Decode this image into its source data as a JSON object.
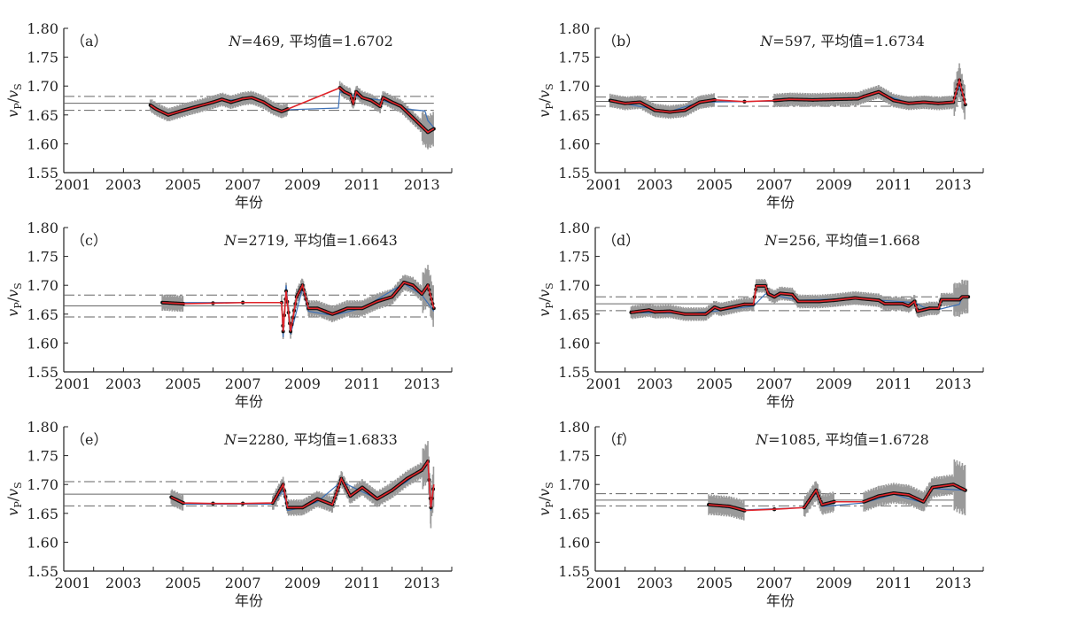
{
  "chart_data": [
    {
      "type": "line",
      "panel": "（a）",
      "n_label": "N",
      "title_rest": "=469, 平均值=1.6702",
      "mean": 1.6702,
      "band": [
        1.658,
        1.682
      ],
      "err": 0.01,
      "red": [
        [
          2003.9,
          1.667
        ],
        [
          2004.1,
          1.66
        ],
        [
          2004.5,
          1.65
        ],
        [
          2005,
          1.658
        ],
        [
          2005.5,
          1.665
        ],
        [
          2006,
          1.672
        ],
        [
          2006.3,
          1.677
        ],
        [
          2006.6,
          1.672
        ],
        [
          2007,
          1.678
        ],
        [
          2007.3,
          1.68
        ],
        [
          2007.7,
          1.672
        ],
        [
          2008,
          1.662
        ],
        [
          2008.3,
          1.656
        ],
        [
          2008.5,
          1.66
        ],
        [
          2010.25,
          1.697
        ],
        [
          2010.4,
          1.69
        ],
        [
          2010.6,
          1.685
        ],
        [
          2010.7,
          1.67
        ],
        [
          2010.8,
          1.69
        ],
        [
          2011,
          1.68
        ],
        [
          2011.3,
          1.675
        ],
        [
          2011.6,
          1.665
        ],
        [
          2011.7,
          1.68
        ],
        [
          2012,
          1.672
        ],
        [
          2012.3,
          1.665
        ],
        [
          2012.5,
          1.655
        ],
        [
          2013.2,
          1.62
        ],
        [
          2013.4,
          1.626
        ]
      ],
      "blue": [
        [
          2003.9,
          1.667
        ],
        [
          2004.5,
          1.652
        ],
        [
          2005.5,
          1.664
        ],
        [
          2006.3,
          1.675
        ],
        [
          2007.3,
          1.678
        ],
        [
          2008.3,
          1.658
        ],
        [
          2008.5,
          1.659
        ],
        [
          2010.2,
          1.662
        ],
        [
          2010.25,
          1.69
        ],
        [
          2011,
          1.68
        ],
        [
          2011.7,
          1.675
        ],
        [
          2012.5,
          1.66
        ],
        [
          2013.1,
          1.657
        ],
        [
          2013.2,
          1.64
        ],
        [
          2013.4,
          1.628
        ]
      ]
    },
    {
      "type": "line",
      "panel": "（b）",
      "n_label": "N",
      "title_rest": "=597, 平均值=1.6734",
      "mean": 1.6734,
      "band": [
        1.665,
        1.681
      ],
      "err": 0.01,
      "red": [
        [
          2001.5,
          1.675
        ],
        [
          2002,
          1.67
        ],
        [
          2002.5,
          1.672
        ],
        [
          2003,
          1.658
        ],
        [
          2003.5,
          1.655
        ],
        [
          2004,
          1.658
        ],
        [
          2004.5,
          1.672
        ],
        [
          2005,
          1.676
        ],
        [
          2006,
          1.673
        ],
        [
          2007,
          1.675
        ],
        [
          2007.5,
          1.677
        ],
        [
          2008.3,
          1.676
        ],
        [
          2009,
          1.677
        ],
        [
          2009.8,
          1.678
        ],
        [
          2010,
          1.682
        ],
        [
          2010.5,
          1.69
        ],
        [
          2011,
          1.675
        ],
        [
          2011.5,
          1.67
        ],
        [
          2012,
          1.672
        ],
        [
          2012.5,
          1.67
        ],
        [
          2013,
          1.672
        ],
        [
          2013.2,
          1.71
        ],
        [
          2013.4,
          1.668
        ]
      ],
      "blue": [
        [
          2001.5,
          1.674
        ],
        [
          2003,
          1.66
        ],
        [
          2003.5,
          1.656
        ],
        [
          2004.5,
          1.672
        ],
        [
          2006,
          1.673
        ],
        [
          2008.3,
          1.676
        ],
        [
          2009.8,
          1.678
        ],
        [
          2010.5,
          1.688
        ],
        [
          2011.5,
          1.671
        ],
        [
          2013,
          1.672
        ],
        [
          2013.2,
          1.7
        ],
        [
          2013.4,
          1.67
        ]
      ]
    },
    {
      "type": "line",
      "panel": "（c）",
      "n_label": "N",
      "title_rest": "=2719, 平均值=1.6643",
      "mean": 1.6643,
      "band": [
        1.645,
        1.683
      ],
      "err": 0.012,
      "red": [
        [
          2004.3,
          1.67
        ],
        [
          2005,
          1.668
        ],
        [
          2006,
          1.669
        ],
        [
          2007,
          1.67
        ],
        [
          2008.3,
          1.67
        ],
        [
          2008.35,
          1.62
        ],
        [
          2008.45,
          1.69
        ],
        [
          2008.6,
          1.62
        ],
        [
          2008.8,
          1.68
        ],
        [
          2009,
          1.7
        ],
        [
          2009.2,
          1.66
        ],
        [
          2009.5,
          1.66
        ],
        [
          2010,
          1.65
        ],
        [
          2010.5,
          1.66
        ],
        [
          2011,
          1.66
        ],
        [
          2011.5,
          1.672
        ],
        [
          2012,
          1.68
        ],
        [
          2012.4,
          1.705
        ],
        [
          2012.7,
          1.7
        ],
        [
          2013,
          1.685
        ],
        [
          2013.2,
          1.7
        ],
        [
          2013.4,
          1.66
        ]
      ],
      "blue": [
        [
          2004.3,
          1.67
        ],
        [
          2008.3,
          1.67
        ],
        [
          2008.35,
          1.61
        ],
        [
          2008.45,
          1.7
        ],
        [
          2008.6,
          1.615
        ],
        [
          2009,
          1.695
        ],
        [
          2009.2,
          1.655
        ],
        [
          2010,
          1.648
        ],
        [
          2011,
          1.66
        ],
        [
          2012.4,
          1.703
        ],
        [
          2013,
          1.683
        ],
        [
          2013.4,
          1.655
        ]
      ]
    },
    {
      "type": "line",
      "panel": "（d）",
      "n_label": "N",
      "title_rest": "=256, 平均值=1.668",
      "mean": 1.668,
      "band": [
        1.656,
        1.68
      ],
      "err": 0.01,
      "red": [
        [
          2002.2,
          1.653
        ],
        [
          2002.8,
          1.657
        ],
        [
          2003,
          1.654
        ],
        [
          2003.5,
          1.655
        ],
        [
          2004,
          1.65
        ],
        [
          2004.7,
          1.65
        ],
        [
          2005,
          1.662
        ],
        [
          2005.2,
          1.658
        ],
        [
          2006,
          1.667
        ],
        [
          2006.3,
          1.667
        ],
        [
          2006.4,
          1.699
        ],
        [
          2006.7,
          1.699
        ],
        [
          2006.8,
          1.685
        ],
        [
          2007,
          1.68
        ],
        [
          2007.2,
          1.686
        ],
        [
          2007.6,
          1.684
        ],
        [
          2007.8,
          1.672
        ],
        [
          2008.5,
          1.672
        ],
        [
          2009,
          1.674
        ],
        [
          2009.7,
          1.678
        ],
        [
          2010.5,
          1.674
        ],
        [
          2010.7,
          1.668
        ],
        [
          2011.3,
          1.668
        ],
        [
          2011.5,
          1.664
        ],
        [
          2011.7,
          1.672
        ],
        [
          2011.8,
          1.655
        ],
        [
          2012.2,
          1.66
        ],
        [
          2012.5,
          1.66
        ],
        [
          2012.6,
          1.675
        ],
        [
          2013.2,
          1.675
        ],
        [
          2013.3,
          1.68
        ],
        [
          2013.5,
          1.68
        ]
      ],
      "blue": [
        [
          2002.2,
          1.653
        ],
        [
          2004,
          1.651
        ],
        [
          2005,
          1.655
        ],
        [
          2006.3,
          1.664
        ],
        [
          2006.7,
          1.685
        ],
        [
          2007,
          1.683
        ],
        [
          2007.8,
          1.674
        ],
        [
          2009.7,
          1.677
        ],
        [
          2011.7,
          1.67
        ],
        [
          2012,
          1.662
        ],
        [
          2012.5,
          1.658
        ],
        [
          2013.2,
          1.667
        ],
        [
          2013.3,
          1.68
        ],
        [
          2013.5,
          1.68
        ]
      ]
    },
    {
      "type": "line",
      "panel": "（e）",
      "n_label": "N",
      "title_rest": "=2280, 平均值=1.6833",
      "mean": 1.6833,
      "band": [
        1.663,
        1.705
      ],
      "err": 0.012,
      "red": [
        [
          2004.6,
          1.678
        ],
        [
          2005,
          1.668
        ],
        [
          2006,
          1.667
        ],
        [
          2007,
          1.667
        ],
        [
          2008,
          1.668
        ],
        [
          2008.35,
          1.7
        ],
        [
          2008.5,
          1.66
        ],
        [
          2009,
          1.66
        ],
        [
          2009.5,
          1.675
        ],
        [
          2010,
          1.665
        ],
        [
          2010.3,
          1.71
        ],
        [
          2010.6,
          1.68
        ],
        [
          2011,
          1.695
        ],
        [
          2011.5,
          1.675
        ],
        [
          2012,
          1.69
        ],
        [
          2012.5,
          1.71
        ],
        [
          2013,
          1.725
        ],
        [
          2013.2,
          1.74
        ],
        [
          2013.3,
          1.66
        ],
        [
          2013.4,
          1.7
        ]
      ],
      "blue": [
        [
          2004.6,
          1.676
        ],
        [
          2005,
          1.666
        ],
        [
          2008,
          1.666
        ],
        [
          2008.35,
          1.69
        ],
        [
          2008.5,
          1.655
        ],
        [
          2009,
          1.66
        ],
        [
          2009.5,
          1.67
        ],
        [
          2010.3,
          1.705
        ],
        [
          2011.5,
          1.675
        ],
        [
          2012.5,
          1.705
        ],
        [
          2013.2,
          1.735
        ],
        [
          2013.3,
          1.655
        ],
        [
          2013.4,
          1.7
        ]
      ]
    },
    {
      "type": "line",
      "panel": "（f）",
      "n_label": "N",
      "title_rest": "=1085, 平均值=1.6728",
      "mean": 1.6728,
      "band": [
        1.663,
        1.684
      ],
      "err": 0.015,
      "red": [
        [
          2004.8,
          1.665
        ],
        [
          2005.5,
          1.662
        ],
        [
          2006,
          1.655
        ],
        [
          2007,
          1.657
        ],
        [
          2008,
          1.66
        ],
        [
          2008.4,
          1.69
        ],
        [
          2008.6,
          1.665
        ],
        [
          2009,
          1.67
        ],
        [
          2010,
          1.67
        ],
        [
          2010.5,
          1.68
        ],
        [
          2011,
          1.685
        ],
        [
          2011.5,
          1.682
        ],
        [
          2012,
          1.67
        ],
        [
          2012.3,
          1.695
        ],
        [
          2013,
          1.7
        ],
        [
          2013.4,
          1.69
        ]
      ],
      "blue": [
        [
          2004.8,
          1.664
        ],
        [
          2006,
          1.656
        ],
        [
          2008,
          1.66
        ],
        [
          2008.4,
          1.685
        ],
        [
          2008.6,
          1.662
        ],
        [
          2010,
          1.668
        ],
        [
          2011,
          1.683
        ],
        [
          2012,
          1.668
        ],
        [
          2012.3,
          1.693
        ],
        [
          2013.4,
          1.69
        ]
      ]
    }
  ],
  "axes": {
    "xlabel": "年份",
    "ylabel_main": "v",
    "ylabel_sub_p": "P",
    "ylabel_sep": "/",
    "ylabel_sub_s": "S",
    "xlim": [
      2001,
      2014
    ],
    "ylim": [
      1.55,
      1.8
    ],
    "xticks": [
      2001,
      2003,
      2005,
      2007,
      2009,
      2011,
      2013
    ],
    "yticks": [
      "1.55",
      "1.60",
      "1.65",
      "1.70",
      "1.75",
      "1.80"
    ]
  },
  "colors": {
    "red": "#e0242a",
    "blue": "#3b6fb6",
    "err": "#9a9a9a",
    "points": "#111111",
    "ref": "#666666"
  }
}
